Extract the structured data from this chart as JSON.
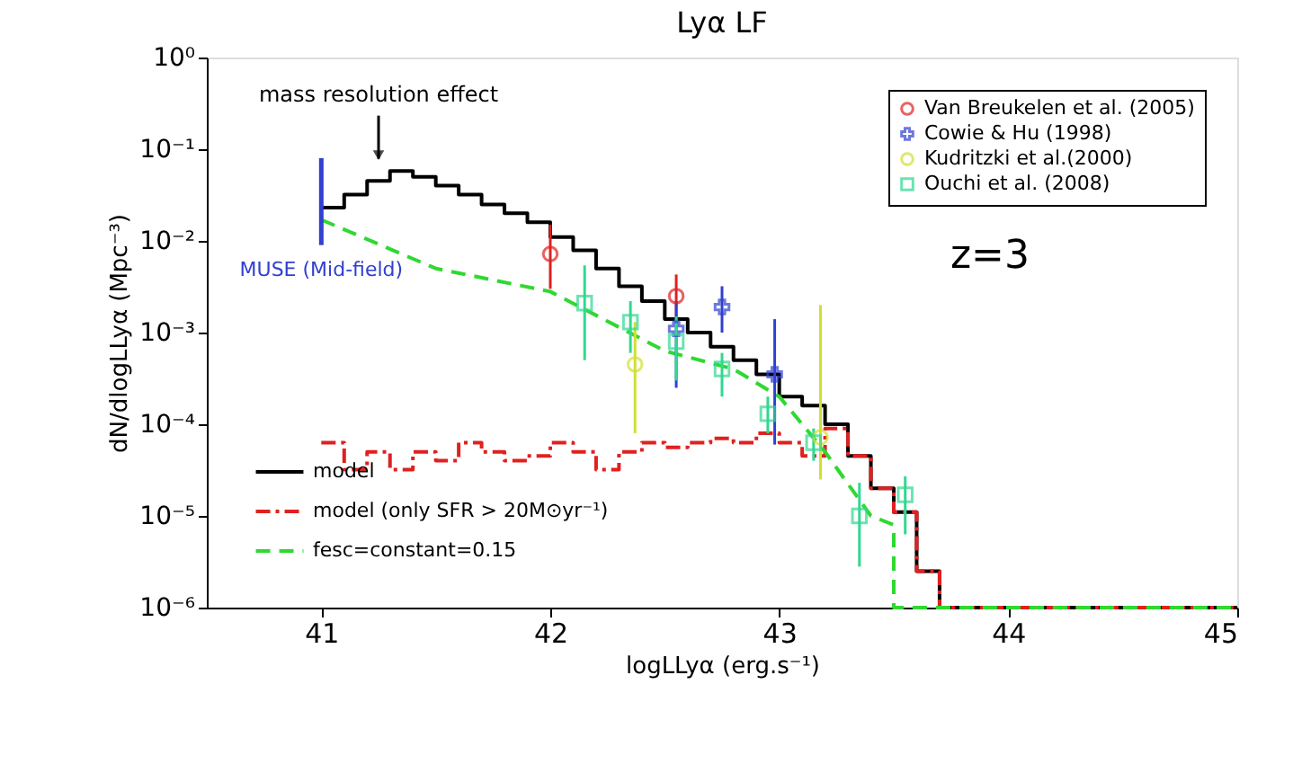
{
  "chart_data": {
    "type": "step",
    "title": "Lyα LF",
    "xlabel": "logLLyα (erg.s⁻¹)",
    "ylabel": "dN/dlogLLyα (Mpc⁻³)",
    "log": "y",
    "grid": false,
    "legend": "top right",
    "xlim": [
      40.5,
      45
    ],
    "xticks": [
      41,
      42,
      43,
      44,
      45
    ],
    "ylim": [
      1e-06,
      1
    ],
    "yticks": [
      {
        "value": 1e-06,
        "label": "10⁻⁶"
      },
      {
        "value": 1e-05,
        "label": "10⁻⁵"
      },
      {
        "value": 0.0001,
        "label": "10⁻⁴"
      },
      {
        "value": 0.001,
        "label": "10⁻³"
      },
      {
        "value": 0.01,
        "label": "10⁻²"
      },
      {
        "value": 0.1,
        "label": "10⁻¹"
      },
      {
        "value": 1,
        "label": "10⁰"
      }
    ],
    "annotations": [
      {
        "text": "mass resolution effect",
        "x": 41.25,
        "y": 0.06
      },
      "z=3"
    ],
    "series": [
      {
        "name": "model",
        "color": "#000000",
        "line_style": "solid",
        "x": [
          41.0,
          41.1,
          41.2,
          41.3,
          41.4,
          41.5,
          41.6,
          41.7,
          41.8,
          41.9,
          42.0,
          42.1,
          42.2,
          42.3,
          42.4,
          42.5,
          42.6,
          42.7,
          42.8,
          42.9,
          43.0,
          43.1,
          43.2,
          43.3,
          43.4,
          43.5,
          43.6,
          43.7,
          45
        ],
        "values": [
          0.023,
          0.032,
          0.045,
          0.058,
          0.05,
          0.04,
          0.032,
          0.025,
          0.02,
          0.016,
          0.011,
          0.0079,
          0.005,
          0.0032,
          0.0022,
          0.0014,
          0.001,
          0.0007,
          0.0005,
          0.00035,
          0.0002,
          0.00016,
          0.0001,
          4.5e-05,
          2e-05,
          1.1e-05,
          2.5e-06,
          1e-06,
          1e-06
        ]
      },
      {
        "name": "model (only SFR > 20M⊙yr⁻¹)",
        "type": "step",
        "color": "#e02020",
        "line_style": "dashdot",
        "x": [
          41.0,
          41.1,
          41.2,
          41.3,
          41.4,
          41.5,
          41.6,
          41.7,
          41.8,
          41.9,
          42.0,
          42.1,
          42.2,
          42.3,
          42.4,
          42.5,
          42.6,
          42.7,
          42.8,
          42.9,
          43.0,
          43.1,
          43.2,
          43.3,
          43.4,
          43.5,
          43.6,
          43.7,
          45
        ],
        "values": [
          6.3e-05,
          3.2e-05,
          5e-05,
          3.2e-05,
          5e-05,
          4e-05,
          6.3e-05,
          5e-05,
          4e-05,
          4.5e-05,
          6.3e-05,
          5e-05,
          3.2e-05,
          5e-05,
          6.3e-05,
          5.6e-05,
          6.3e-05,
          7e-05,
          6.3e-05,
          8e-05,
          6.3e-05,
          4.5e-05,
          9e-05,
          4.5e-05,
          2e-05,
          1.1e-05,
          2.5e-06,
          1e-06,
          1e-06
        ]
      },
      {
        "name": "fesc=constant=0.15",
        "type": "line",
        "color": "#30d830",
        "line_style": "dashed",
        "x": [
          41.0,
          41.5,
          42.0,
          42.5,
          42.8,
          43.0,
          43.2,
          43.4,
          43.5,
          43.5,
          45
        ],
        "values": [
          0.017,
          0.005,
          0.0028,
          0.00063,
          0.0004,
          0.0002,
          5e-05,
          1e-05,
          8e-06,
          1e-06,
          1e-06
        ]
      },
      {
        "name": "MUSE (Mid-field)",
        "type": "line",
        "color": "#3040d0",
        "line_style": "solid",
        "x": [
          41,
          41
        ],
        "values": [
          0.08,
          0.009
        ]
      },
      {
        "name": "Van Breukelen et al. (2005)",
        "type": "scatter",
        "marker": "circle",
        "color": "#e02020",
        "x": [
          42.0,
          42.55
        ],
        "values": [
          0.0072,
          0.0025
        ],
        "errors": [
          [
            0.003,
            0.015
          ],
          [
            0.0013,
            0.0043
          ]
        ]
      },
      {
        "name": "Cowie & Hu (1998)",
        "type": "scatter",
        "marker": "cross",
        "color": "#3040d0",
        "x": [
          42.55,
          42.75,
          42.98
        ],
        "values": [
          0.0011,
          0.0019,
          0.00035
        ],
        "errors": [
          [
            0.00025,
            0.0022
          ],
          [
            0.001,
            0.0032
          ],
          [
            6e-05,
            0.0014
          ]
        ]
      },
      {
        "name": "Kudritzki et al.(2000)",
        "type": "scatter",
        "marker": "circle",
        "color": "#d0e030",
        "x": [
          42.37,
          43.18
        ],
        "values": [
          0.00045,
          7.2e-05
        ],
        "errors": [
          [
            8e-05,
            0.0013
          ],
          [
            2.5e-05,
            0.002
          ]
        ]
      },
      {
        "name": "Ouchi et al. (2008)",
        "type": "scatter",
        "marker": "square",
        "color": "#30d890",
        "x": [
          42.15,
          42.35,
          42.55,
          42.75,
          42.95,
          43.15,
          43.35,
          43.55
        ],
        "values": [
          0.0021,
          0.0013,
          0.0008,
          0.0004,
          0.00013,
          6.3e-05,
          1e-05,
          1.7e-05
        ],
        "errors": [
          [
            0.0005,
            0.0054
          ],
          [
            0.0006,
            0.0022
          ],
          [
            0.0003,
            0.0015
          ],
          [
            0.0002,
            0.0006
          ],
          [
            8e-05,
            0.0002
          ],
          [
            4e-05,
            9e-05
          ],
          [
            2.8e-06,
            2.3e-05
          ],
          [
            6.3e-06,
            2.7e-05
          ]
        ]
      }
    ]
  }
}
